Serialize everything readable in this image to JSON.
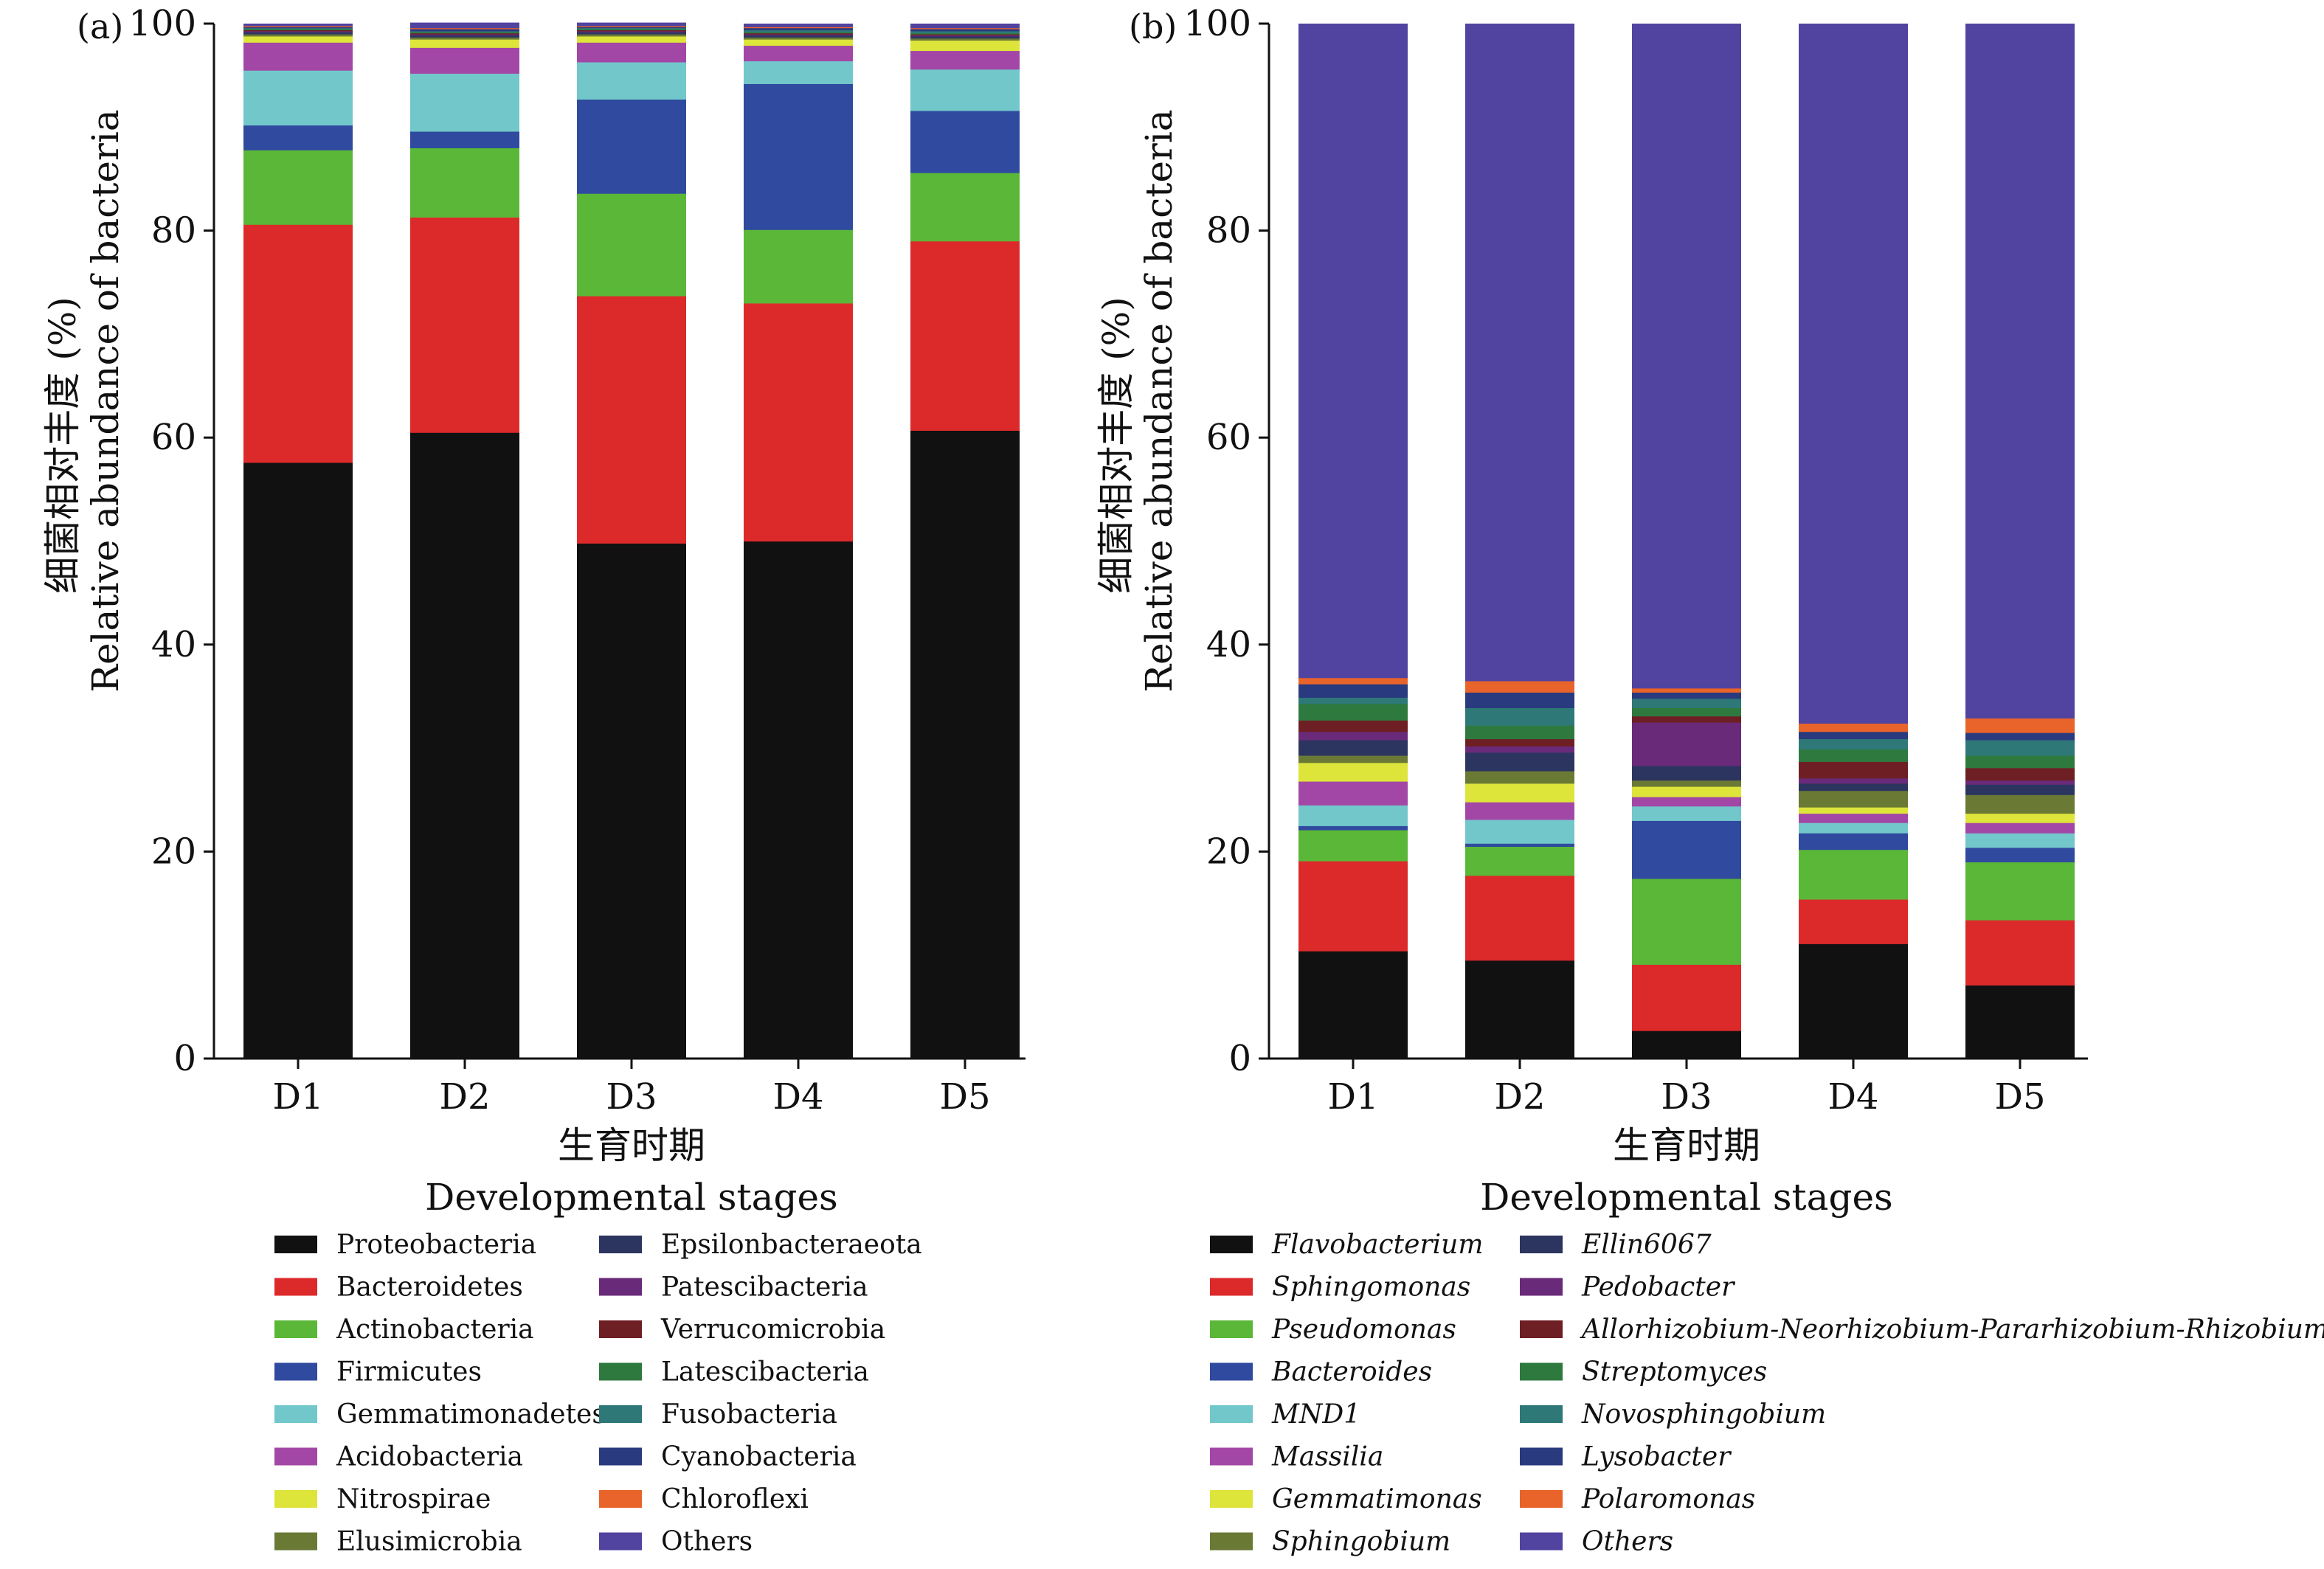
{
  "figure": {
    "ylabel_cn": "细菌相对丰度 (%)",
    "ylabel_en": "Relative abundance of bacteria",
    "xlabel_cn": "生育时期",
    "xlabel_en": "Developmental stages"
  },
  "chart_data": [
    {
      "type": "bar",
      "stacked": true,
      "panel_label": "(a)",
      "categories": [
        "D1",
        "D2",
        "D3",
        "D4",
        "D5"
      ],
      "ylim": [
        0,
        100
      ],
      "yticks": [
        0,
        20,
        40,
        60,
        80,
        100
      ],
      "xlabel": "Developmental stages",
      "ylabel": "Relative abundance of bacteria (%)",
      "legend_italic": false,
      "series": [
        {
          "name": "Proteobacteria",
          "color": "#111111",
          "values": [
            57.6,
            60.5,
            49.8,
            50.0,
            60.7
          ]
        },
        {
          "name": "Bacteroidetes",
          "color": "#dc2a2b",
          "values": [
            23.0,
            20.8,
            23.9,
            23.0,
            18.3
          ]
        },
        {
          "name": "Actinobacteria",
          "color": "#5bb738",
          "values": [
            7.2,
            6.7,
            9.9,
            7.1,
            6.6
          ]
        },
        {
          "name": "Firmicutes",
          "color": "#2f4a9e",
          "values": [
            2.4,
            1.6,
            9.1,
            14.1,
            6.0
          ]
        },
        {
          "name": "Gemmatimonadetes",
          "color": "#72c7ca",
          "values": [
            5.3,
            5.6,
            3.6,
            2.2,
            4.0
          ]
        },
        {
          "name": "Acidobacteria",
          "color": "#a347a6",
          "values": [
            2.7,
            2.5,
            1.9,
            1.5,
            1.8
          ]
        },
        {
          "name": "Nitrospirae",
          "color": "#dde43a",
          "values": [
            0.6,
            0.8,
            0.6,
            0.6,
            1.0
          ]
        },
        {
          "name": "Elusimicrobia",
          "color": "#6a7a35",
          "values": [
            0.2,
            0.2,
            0.2,
            0.2,
            0.2
          ]
        },
        {
          "name": "Epsilonbacteraeota",
          "color": "#2c3560",
          "values": [
            0.2,
            0.2,
            0.2,
            0.2,
            0.2
          ]
        },
        {
          "name": "Patescibacteria",
          "color": "#6a2a7a",
          "values": [
            0.1,
            0.1,
            0.1,
            0.1,
            0.1
          ]
        },
        {
          "name": "Verrucomicrobia",
          "color": "#6e1f24",
          "values": [
            0.1,
            0.1,
            0.1,
            0.1,
            0.1
          ]
        },
        {
          "name": "Latescibacteria",
          "color": "#2e7a3e",
          "values": [
            0.1,
            0.1,
            0.1,
            0.1,
            0.1
          ]
        },
        {
          "name": "Fusobacteria",
          "color": "#2e7878",
          "values": [
            0.1,
            0.1,
            0.1,
            0.2,
            0.2
          ]
        },
        {
          "name": "Cyanobacteria",
          "color": "#2a3a7e",
          "values": [
            0.1,
            0.2,
            0.1,
            0.2,
            0.2
          ]
        },
        {
          "name": "Chloroflexi",
          "color": "#e8642a",
          "values": [
            0.1,
            0.1,
            0.1,
            0.1,
            0.1
          ]
        },
        {
          "name": "Others",
          "color": "#5143a0",
          "values": [
            0.2,
            0.5,
            0.3,
            0.3,
            0.4
          ]
        }
      ]
    },
    {
      "type": "bar",
      "stacked": true,
      "panel_label": "(b)",
      "categories": [
        "D1",
        "D2",
        "D3",
        "D4",
        "D5"
      ],
      "ylim": [
        0,
        100
      ],
      "yticks": [
        0,
        20,
        40,
        60,
        80,
        100
      ],
      "xlabel": "Developmental stages",
      "ylabel": "Relative abundance of bacteria (%)",
      "legend_italic": true,
      "series": [
        {
          "name": "Flavobacterium",
          "color": "#111111",
          "values": [
            10.4,
            9.5,
            2.7,
            11.1,
            7.1
          ]
        },
        {
          "name": "Sphingomonas",
          "color": "#dc2a2b",
          "values": [
            8.7,
            8.2,
            6.4,
            4.3,
            6.3
          ]
        },
        {
          "name": "Pseudomonas",
          "color": "#5bb738",
          "values": [
            3.0,
            2.8,
            8.3,
            4.8,
            5.6
          ]
        },
        {
          "name": "Bacteroides",
          "color": "#2f4a9e",
          "values": [
            0.4,
            0.3,
            5.6,
            1.6,
            1.4
          ]
        },
        {
          "name": "MND1",
          "color": "#72c7ca",
          "values": [
            2.0,
            2.3,
            1.4,
            1.0,
            1.4
          ]
        },
        {
          "name": "Massilia",
          "color": "#a347a6",
          "values": [
            2.3,
            1.7,
            0.9,
            0.9,
            1.0
          ]
        },
        {
          "name": "Gemmatimonas",
          "color": "#dde43a",
          "values": [
            1.8,
            1.8,
            1.0,
            0.6,
            0.9
          ]
        },
        {
          "name": "Sphingobium",
          "color": "#6a7a35",
          "values": [
            0.7,
            1.2,
            0.6,
            1.6,
            1.8
          ]
        },
        {
          "name": "Ellin6067",
          "color": "#2c3560",
          "values": [
            1.5,
            1.8,
            1.4,
            0.7,
            1.0
          ]
        },
        {
          "name": "Pedobacter",
          "color": "#6a2a7a",
          "values": [
            0.8,
            0.6,
            4.2,
            0.5,
            0.4
          ]
        },
        {
          "name": "Allorhizobium-Neorhizobium-Pararhizobium-Rhizobium",
          "color": "#6e1f24",
          "values": [
            1.1,
            0.7,
            0.6,
            1.6,
            1.2
          ]
        },
        {
          "name": "Streptomyces",
          "color": "#2e7a3e",
          "values": [
            1.6,
            1.3,
            0.8,
            1.2,
            1.2
          ]
        },
        {
          "name": "Novosphingobium",
          "color": "#2e7878",
          "values": [
            0.6,
            1.7,
            0.9,
            1.0,
            1.5
          ]
        },
        {
          "name": "Lysobacter",
          "color": "#2a3a7e",
          "values": [
            1.3,
            1.5,
            0.6,
            0.7,
            0.7
          ]
        },
        {
          "name": "Polaromonas",
          "color": "#e8642a",
          "values": [
            0.6,
            1.1,
            0.4,
            0.8,
            1.4
          ]
        },
        {
          "name": "Others",
          "color": "#5143a0",
          "values": [
            63.2,
            63.5,
            64.2,
            67.6,
            67.1
          ]
        }
      ]
    }
  ]
}
